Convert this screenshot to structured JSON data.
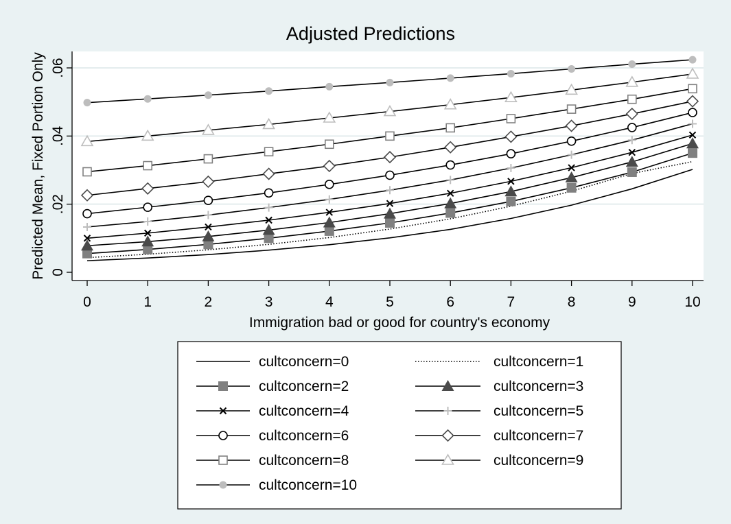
{
  "chart_data": {
    "type": "line",
    "title": "Adjusted Predictions",
    "xlabel": "Immigration bad or good for country's economy",
    "ylabel": "Predicted Mean, Fixed Portion Only",
    "x": [
      0,
      1,
      2,
      3,
      4,
      5,
      6,
      7,
      8,
      9,
      10
    ],
    "xlim": [
      0,
      10
    ],
    "ylim": [
      0,
      0.062
    ],
    "x_ticks": [
      {
        "value": 0,
        "label": "0"
      },
      {
        "value": 1,
        "label": "1"
      },
      {
        "value": 2,
        "label": "2"
      },
      {
        "value": 3,
        "label": "3"
      },
      {
        "value": 4,
        "label": "4"
      },
      {
        "value": 5,
        "label": "5"
      },
      {
        "value": 6,
        "label": "6"
      },
      {
        "value": 7,
        "label": "7"
      },
      {
        "value": 8,
        "label": "8"
      },
      {
        "value": 9,
        "label": "9"
      },
      {
        "value": 10,
        "label": "10"
      }
    ],
    "y_ticks": [
      {
        "value": 0,
        "label": "0"
      },
      {
        "value": 0.02,
        "label": ".02"
      },
      {
        "value": 0.04,
        "label": ".04"
      },
      {
        "value": 0.06,
        "label": ".06"
      }
    ],
    "grid": "horizontal",
    "legend_position": "bottom",
    "legend_columns": 2,
    "colors": {
      "background": "#eaf2f3",
      "plot_background": "#ffffff",
      "grid": "#e4ecee",
      "line": "#000000",
      "marker_dark": "#4a4a4a",
      "marker_mid": "#808080",
      "marker_light": "#bdbdbd"
    },
    "series": [
      {
        "name": "cultconcern=0",
        "marker": "none",
        "line": "solid",
        "values": [
          0.0034,
          0.0042,
          0.0052,
          0.0065,
          0.0081,
          0.0101,
          0.0126,
          0.0158,
          0.0197,
          0.0245,
          0.0302
        ]
      },
      {
        "name": "cultconcern=1",
        "marker": "none",
        "line": "dotted",
        "values": [
          0.0043,
          0.0053,
          0.0066,
          0.0082,
          0.0102,
          0.0127,
          0.0157,
          0.0194,
          0.0238,
          0.029,
          0.0325
        ]
      },
      {
        "name": "cultconcern=2",
        "marker": "square-filled",
        "line": "solid",
        "values": [
          0.0055,
          0.0067,
          0.0082,
          0.01,
          0.0121,
          0.0145,
          0.0174,
          0.0208,
          0.0248,
          0.0294,
          0.035
        ]
      },
      {
        "name": "cultconcern=3",
        "marker": "triangle-filled",
        "line": "solid",
        "values": [
          0.0078,
          0.009,
          0.0105,
          0.0124,
          0.0146,
          0.0172,
          0.0202,
          0.0237,
          0.0278,
          0.0324,
          0.0378
        ]
      },
      {
        "name": "cultconcern=4",
        "marker": "x",
        "line": "solid",
        "values": [
          0.01,
          0.0115,
          0.0133,
          0.0153,
          0.0176,
          0.0202,
          0.0232,
          0.0267,
          0.0307,
          0.0352,
          0.0403
        ]
      },
      {
        "name": "cultconcern=5",
        "marker": "plus",
        "line": "solid",
        "values": [
          0.0133,
          0.0149,
          0.0168,
          0.019,
          0.0214,
          0.0241,
          0.0271,
          0.0306,
          0.0345,
          0.0388,
          0.0436
        ]
      },
      {
        "name": "cultconcern=6",
        "marker": "circle-hollow",
        "line": "solid",
        "values": [
          0.0172,
          0.0191,
          0.0211,
          0.0233,
          0.0258,
          0.0285,
          0.0315,
          0.0348,
          0.0385,
          0.0425,
          0.0469
        ]
      },
      {
        "name": "cultconcern=7",
        "marker": "diamond-hollow",
        "line": "solid",
        "values": [
          0.0226,
          0.0246,
          0.0266,
          0.0289,
          0.0312,
          0.0338,
          0.0367,
          0.0398,
          0.043,
          0.0465,
          0.0502
        ]
      },
      {
        "name": "cultconcern=8",
        "marker": "square-hollow",
        "line": "solid",
        "values": [
          0.0295,
          0.0313,
          0.0333,
          0.0354,
          0.0376,
          0.04,
          0.0424,
          0.0451,
          0.0479,
          0.0508,
          0.0539
        ]
      },
      {
        "name": "cultconcern=9",
        "marker": "triangle-hollow",
        "line": "solid",
        "values": [
          0.0384,
          0.04,
          0.0417,
          0.0434,
          0.0453,
          0.0472,
          0.0492,
          0.0513,
          0.0535,
          0.0558,
          0.0582
        ]
      },
      {
        "name": "cultconcern=10",
        "marker": "circle-filled",
        "line": "solid",
        "values": [
          0.0498,
          0.0509,
          0.052,
          0.0532,
          0.0545,
          0.0557,
          0.057,
          0.0583,
          0.0597,
          0.0611,
          0.0624
        ]
      }
    ]
  }
}
